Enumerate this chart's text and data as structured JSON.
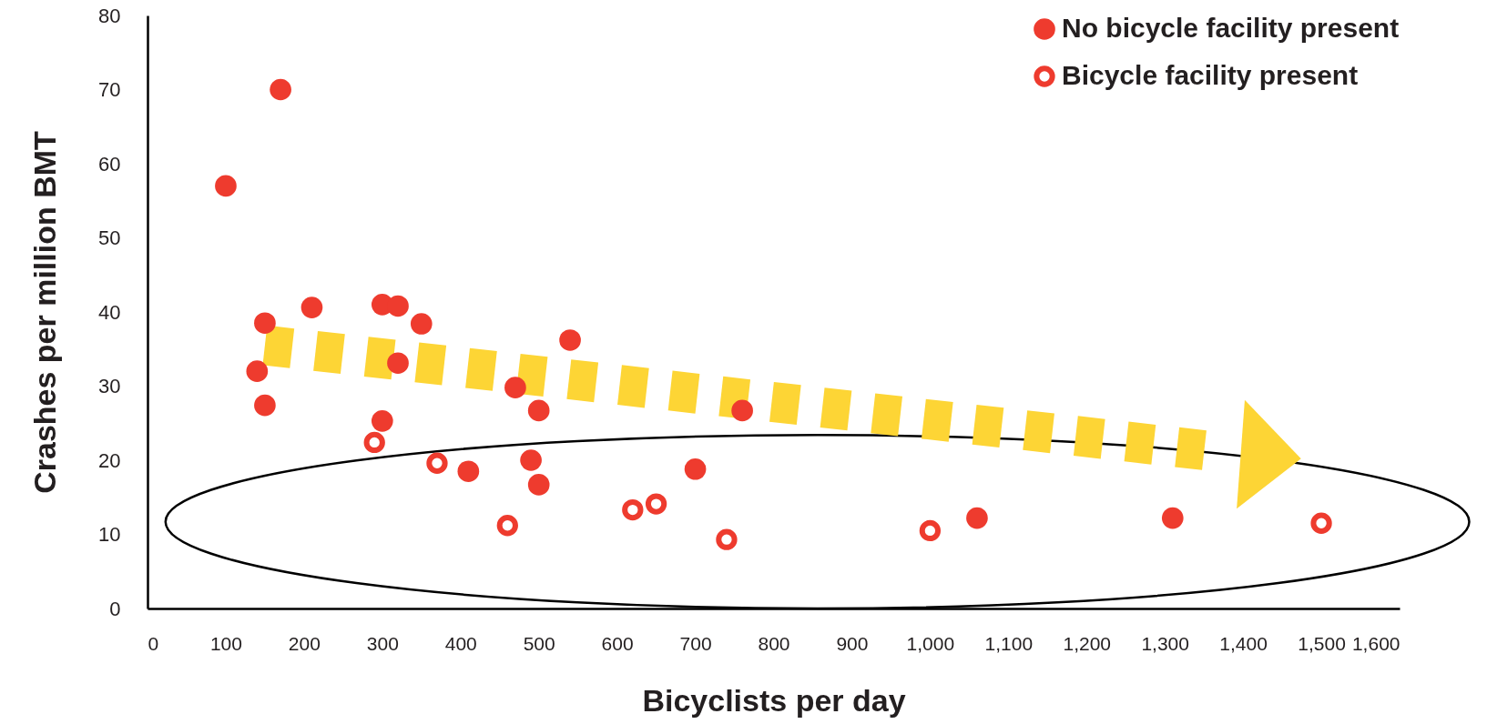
{
  "chart_data": {
    "type": "scatter",
    "xlabel": "Bicyclists per day",
    "ylabel": "Crashes per million BMT",
    "xlim": [
      0,
      1600
    ],
    "xticks": [
      0,
      100,
      200,
      300,
      400,
      500,
      600,
      700,
      800,
      900,
      {
        "value": 1000,
        "label": "1,000"
      },
      {
        "value": 1100,
        "label": "1,100"
      },
      {
        "value": 1200,
        "label": "1,200"
      },
      {
        "value": 1300,
        "label": "1,300"
      },
      {
        "value": 1400,
        "label": "1,400"
      },
      {
        "value": 1500,
        "label": "1,500"
      },
      {
        "value": 1600,
        "label": "1,600"
      }
    ],
    "ylim": [
      0,
      80
    ],
    "yticks": [
      0,
      10,
      20,
      30,
      40,
      50,
      60,
      70,
      80
    ],
    "grid": false,
    "legend": "top right",
    "series": [
      {
        "name": "No bicycle facility present",
        "color": "#ee3b2e",
        "marker": "circle",
        "x": [
          100,
          170,
          150,
          140,
          150,
          210,
          300,
          320,
          350,
          320,
          300,
          410,
          470,
          500,
          540,
          490,
          500,
          700,
          760,
          1060,
          1310
        ],
        "values": [
          57,
          70,
          38.5,
          32,
          27.4,
          40.6,
          41,
          40.8,
          38.4,
          33.1,
          25.3,
          18.5,
          29.8,
          26.7,
          36.2,
          20,
          16.7,
          18.8,
          26.7,
          12.2,
          12.2
        ]
      },
      {
        "name": "Bicycle facility present",
        "color": "#ee3b2e",
        "marker": "circle-open",
        "x": [
          290,
          370,
          460,
          620,
          650,
          740,
          1000,
          1500
        ],
        "values": [
          22.4,
          19.6,
          11.2,
          13.3,
          14.1,
          9.3,
          10.5,
          11.5
        ]
      }
    ]
  }
}
